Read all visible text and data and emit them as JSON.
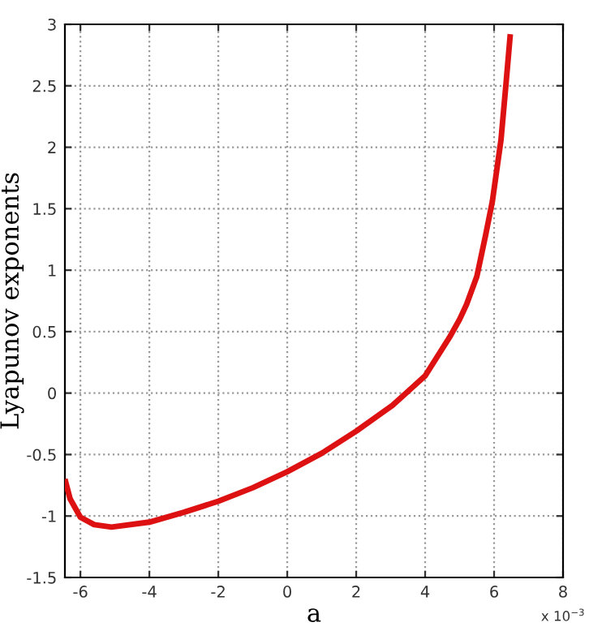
{
  "chart_data": {
    "type": "line",
    "xlabel": "a",
    "ylabel": "Lyapunov exponents",
    "annotations": [
      "x 10$^{−3}$"
    ],
    "series": [
      {
        "color": "#dd1111",
        "x": [
          -6.45,
          -6.3,
          -6.0,
          -5.6,
          -5.1,
          -4.0,
          -3.0,
          -2.0,
          -1.0,
          0.0,
          1.0,
          2.0,
          3.05,
          4.0,
          4.7,
          5.0,
          5.2,
          5.5,
          5.75,
          5.95,
          6.2,
          6.35,
          6.47
        ],
        "values": [
          -0.7,
          -0.86,
          -1.01,
          -1.07,
          -1.09,
          -1.05,
          -0.97,
          -0.88,
          -0.77,
          -0.64,
          -0.49,
          -0.31,
          -0.1,
          0.14,
          0.45,
          0.6,
          0.72,
          0.95,
          1.28,
          1.56,
          2.06,
          2.53,
          2.92
        ]
      }
    ],
    "xlim": [
      -6.45,
      8
    ],
    "xticks": [
      -6,
      -4,
      -2,
      0,
      2,
      4,
      6,
      8
    ],
    "ylim": [
      -1.5,
      3
    ],
    "yticks": [
      -1.5,
      -1,
      -0.5,
      0,
      0.5,
      1,
      1.5,
      2,
      2.5,
      3
    ],
    "grid": true,
    "line_style": "solid",
    "marker": "none"
  }
}
